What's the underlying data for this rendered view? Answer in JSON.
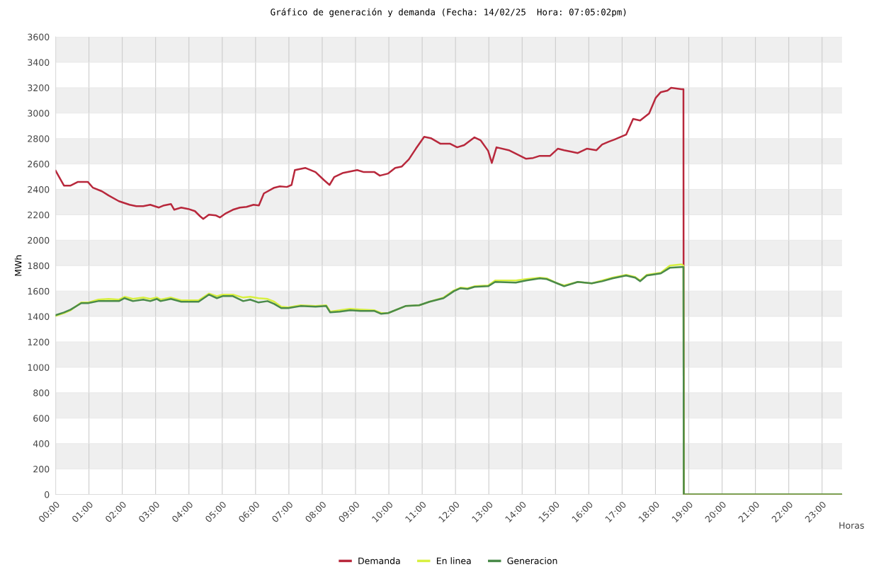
{
  "chart_data": {
    "type": "line",
    "title": "Gráfico de generación y demanda (Fecha: 14/02/25  Hora: 07:05:02pm)",
    "xlabel": "Horas",
    "ylabel": "MWh",
    "xlim": [
      0,
      23.6
    ],
    "xticks": [
      {
        "value": 0,
        "label": "00:00"
      },
      {
        "value": 1,
        "label": "01:00"
      },
      {
        "value": 2,
        "label": "02:00"
      },
      {
        "value": 3,
        "label": "03:00"
      },
      {
        "value": 4,
        "label": "04:00"
      },
      {
        "value": 5,
        "label": "05:00"
      },
      {
        "value": 6,
        "label": "06:00"
      },
      {
        "value": 7,
        "label": "07:00"
      },
      {
        "value": 8,
        "label": "08:00"
      },
      {
        "value": 9,
        "label": "09:00"
      },
      {
        "value": 10,
        "label": "10:00"
      },
      {
        "value": 11,
        "label": "11:00"
      },
      {
        "value": 12,
        "label": "12:00"
      },
      {
        "value": 13,
        "label": "13:00"
      },
      {
        "value": 14,
        "label": "14:00"
      },
      {
        "value": 15,
        "label": "15:00"
      },
      {
        "value": 16,
        "label": "16:00"
      },
      {
        "value": 17,
        "label": "17:00"
      },
      {
        "value": 18,
        "label": "18:00"
      },
      {
        "value": 19,
        "label": "19:00"
      },
      {
        "value": 20,
        "label": "20:00"
      },
      {
        "value": 21,
        "label": "21:00"
      },
      {
        "value": 22,
        "label": "22:00"
      },
      {
        "value": 23,
        "label": "23:00"
      }
    ],
    "ylim": [
      0,
      3600
    ],
    "yticks": [
      0,
      200,
      400,
      600,
      800,
      1000,
      1200,
      1400,
      1600,
      1800,
      2000,
      2200,
      2400,
      2600,
      2800,
      3000,
      3200,
      3400,
      3600
    ],
    "grid": true,
    "legend": "bottom",
    "marker": "none",
    "line_style": "solid",
    "series": [
      {
        "name": "Demanda",
        "color": "#b8283c",
        "x": [
          0,
          0.25,
          0.45,
          0.66,
          0.97,
          1.12,
          1.39,
          1.59,
          1.9,
          2.22,
          2.42,
          2.63,
          2.84,
          3.1,
          3.25,
          3.46,
          3.56,
          3.77,
          3.98,
          4.18,
          4.33,
          4.43,
          4.6,
          4.8,
          4.93,
          5.11,
          5.32,
          5.53,
          5.73,
          5.94,
          6.1,
          6.25,
          6.56,
          6.73,
          6.94,
          7.08,
          7.18,
          7.49,
          7.8,
          8.05,
          8.22,
          8.36,
          8.63,
          9.05,
          9.25,
          9.57,
          9.73,
          9.98,
          10.19,
          10.39,
          10.6,
          10.81,
          11.06,
          11.26,
          11.55,
          11.84,
          12.05,
          12.26,
          12.57,
          12.75,
          12.98,
          13.09,
          13.23,
          13.6,
          14.12,
          14.33,
          14.53,
          14.84,
          15.07,
          15.26,
          15.47,
          15.67,
          15.94,
          16.23,
          16.4,
          16.6,
          16.77,
          17.12,
          17.33,
          17.54,
          17.81,
          18.01,
          18.16,
          18.36,
          18.47,
          18.78,
          18.84,
          18.85,
          23.6
        ],
        "values": [
          2547,
          2430,
          2430,
          2458,
          2458,
          2413,
          2385,
          2352,
          2307,
          2279,
          2268,
          2268,
          2279,
          2257,
          2274,
          2285,
          2240,
          2257,
          2246,
          2229,
          2190,
          2168,
          2201,
          2196,
          2179,
          2212,
          2240,
          2257,
          2262,
          2279,
          2274,
          2368,
          2413,
          2424,
          2419,
          2435,
          2552,
          2569,
          2536,
          2474,
          2435,
          2497,
          2530,
          2552,
          2536,
          2536,
          2508,
          2525,
          2569,
          2580,
          2636,
          2720,
          2814,
          2803,
          2759,
          2759,
          2731,
          2748,
          2809,
          2787,
          2703,
          2608,
          2731,
          2708,
          2641,
          2647,
          2664,
          2664,
          2720,
          2708,
          2697,
          2686,
          2720,
          2708,
          2753,
          2775,
          2792,
          2831,
          2954,
          2942,
          2998,
          3121,
          3165,
          3177,
          3199,
          3188,
          3188,
          0,
          0
        ]
      },
      {
        "name": "En linea",
        "color": "#d8f040",
        "x": [
          0,
          0.25,
          0.45,
          0.77,
          0.97,
          1.28,
          1.59,
          1.9,
          2.07,
          2.32,
          2.63,
          2.84,
          3.04,
          3.15,
          3.46,
          3.77,
          4.29,
          4.6,
          4.84,
          5.01,
          5.32,
          5.63,
          5.84,
          6.09,
          6.36,
          6.56,
          6.77,
          6.98,
          7.35,
          7.8,
          8.12,
          8.24,
          8.53,
          8.84,
          9.15,
          9.57,
          9.77,
          9.98,
          10.5,
          10.91,
          11.22,
          11.64,
          11.95,
          12.15,
          12.36,
          12.57,
          12.98,
          13.19,
          13.81,
          14.12,
          14.53,
          14.74,
          15.05,
          15.26,
          15.67,
          16.09,
          16.4,
          16.71,
          17.12,
          17.39,
          17.54,
          17.74,
          18.16,
          18.43,
          18.78,
          18.84,
          18.85,
          23.6
        ],
        "values": [
          1405,
          1427,
          1449,
          1510,
          1510,
          1533,
          1538,
          1533,
          1555,
          1538,
          1549,
          1538,
          1549,
          1533,
          1549,
          1527,
          1527,
          1580,
          1560,
          1572,
          1572,
          1549,
          1555,
          1544,
          1538,
          1516,
          1477,
          1471,
          1488,
          1482,
          1488,
          1438,
          1449,
          1460,
          1455,
          1449,
          1427,
          1427,
          1482,
          1488,
          1516,
          1549,
          1605,
          1627,
          1622,
          1638,
          1644,
          1683,
          1683,
          1694,
          1705,
          1700,
          1661,
          1644,
          1672,
          1661,
          1683,
          1705,
          1728,
          1711,
          1683,
          1728,
          1745,
          1800,
          1810,
          1800,
          0,
          0
        ]
      },
      {
        "name": "Generacion",
        "color": "#4a8a4a",
        "x": [
          0,
          0.25,
          0.45,
          0.77,
          0.97,
          1.28,
          1.59,
          1.9,
          2.07,
          2.32,
          2.63,
          2.84,
          3.04,
          3.15,
          3.46,
          3.77,
          4.29,
          4.6,
          4.84,
          5.01,
          5.32,
          5.63,
          5.84,
          6.09,
          6.36,
          6.56,
          6.77,
          6.98,
          7.35,
          7.8,
          8.12,
          8.24,
          8.53,
          8.84,
          9.15,
          9.57,
          9.77,
          9.98,
          10.5,
          10.91,
          11.22,
          11.64,
          11.95,
          12.15,
          12.36,
          12.57,
          12.98,
          13.19,
          13.81,
          14.12,
          14.53,
          14.74,
          15.05,
          15.26,
          15.67,
          16.09,
          16.4,
          16.71,
          17.12,
          17.39,
          17.54,
          17.74,
          18.16,
          18.43,
          18.78,
          18.84,
          18.85,
          23.6
        ],
        "values": [
          1410,
          1432,
          1454,
          1505,
          1505,
          1521,
          1521,
          1521,
          1544,
          1521,
          1533,
          1521,
          1538,
          1521,
          1538,
          1516,
          1516,
          1572,
          1544,
          1560,
          1560,
          1521,
          1533,
          1510,
          1521,
          1499,
          1466,
          1466,
          1482,
          1477,
          1482,
          1432,
          1438,
          1449,
          1443,
          1443,
          1421,
          1427,
          1482,
          1488,
          1516,
          1544,
          1599,
          1622,
          1616,
          1633,
          1638,
          1672,
          1666,
          1683,
          1700,
          1694,
          1661,
          1638,
          1672,
          1661,
          1677,
          1700,
          1722,
          1705,
          1677,
          1722,
          1739,
          1783,
          1789,
          1789,
          0,
          0
        ]
      }
    ]
  }
}
